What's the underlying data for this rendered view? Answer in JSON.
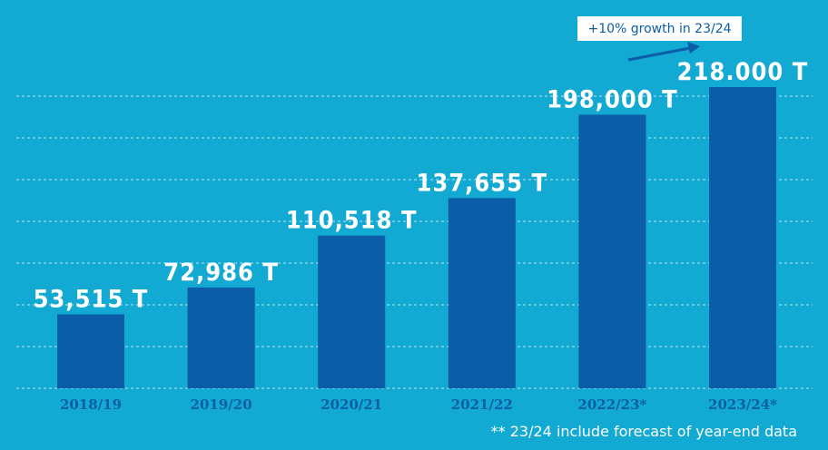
{
  "chart_data": {
    "type": "bar",
    "categories": [
      "2018/19",
      "2019/20",
      "2020/21",
      "2021/22",
      "2022/23*",
      "2023/24*"
    ],
    "values": [
      53515,
      72986,
      110518,
      137655,
      198000,
      218000
    ],
    "value_labels": [
      "53,515 T",
      "72,986 T",
      "110,518 T",
      "137,655 T",
      "198,000 T",
      "218.000 T"
    ],
    "ylim": [
      0,
      240000
    ],
    "grid": true,
    "annotation": "+10% growth in 23/24",
    "footnote": "** 23/24 include forecast of year-end data",
    "colors": {
      "background": "#12a9d2",
      "bar": "#0a5da6",
      "value_label": "#ffffff",
      "tick_label": "#0a5da6",
      "gridline": "#d6f1fb"
    }
  }
}
